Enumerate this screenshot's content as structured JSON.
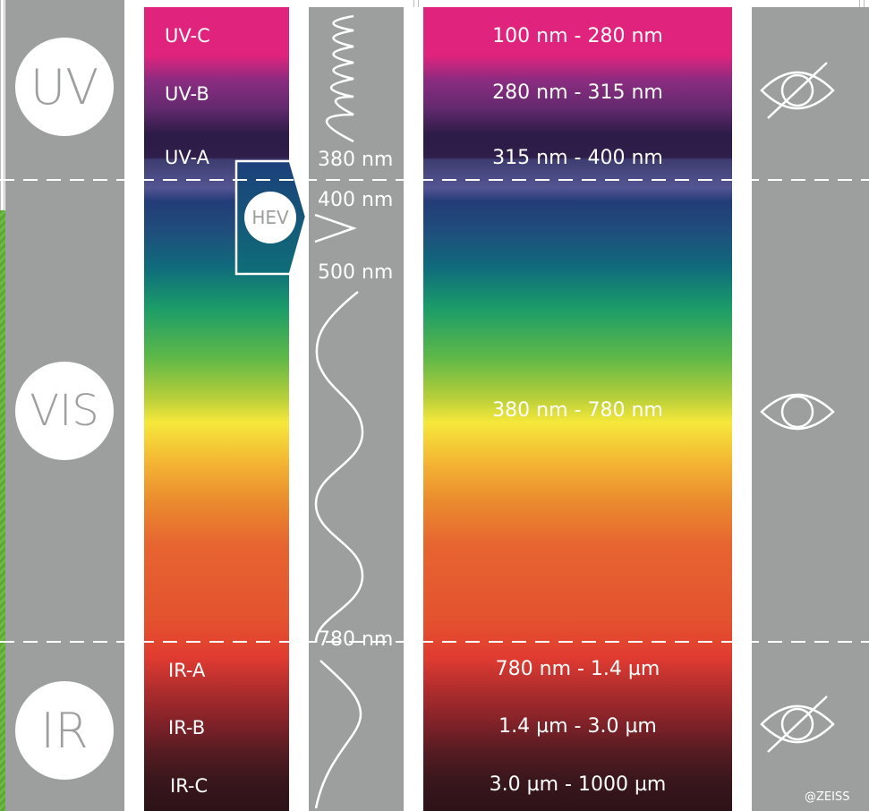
{
  "categories": [
    {
      "name": "UV"
    },
    {
      "name": "VIS"
    },
    {
      "name": "IR"
    }
  ],
  "bands": [
    {
      "label": "UV-C",
      "range": "100 nm - 280 nm"
    },
    {
      "label": "UV-B",
      "range": "280 nm - 315 nm"
    },
    {
      "label": "UV-A",
      "range": "315 nm - 400 nm"
    },
    {
      "label": "",
      "range": "380 nm - 780 nm"
    },
    {
      "label": "IR-A",
      "range": "780 nm - 1.4 µm"
    },
    {
      "label": "IR-B",
      "range": "1.4 µm - 3.0 µm"
    },
    {
      "label": "IR-C",
      "range": "3.0 µm - 1000 µm"
    }
  ],
  "hev": {
    "label": "HEV"
  },
  "wavelength_marks": [
    "380 nm",
    "400 nm",
    "500 nm",
    "780 nm"
  ],
  "visibility": [
    {
      "category": "UV",
      "icon": "eye-crossed-icon"
    },
    {
      "category": "VIS",
      "icon": "eye-icon"
    },
    {
      "category": "IR",
      "icon": "eye-crossed-icon"
    }
  ],
  "credit": "@ZEISS",
  "colors": {
    "panel_gray": "#9d9e9e",
    "uv_c": "#e0237d",
    "uv_b": "#8a2c80",
    "uv_a": "#2d1c47",
    "hev": "#1f4f7c",
    "visible_yellow": "#f6e83b",
    "ir_a": "#df3b31",
    "ir_c": "#2c1218"
  }
}
